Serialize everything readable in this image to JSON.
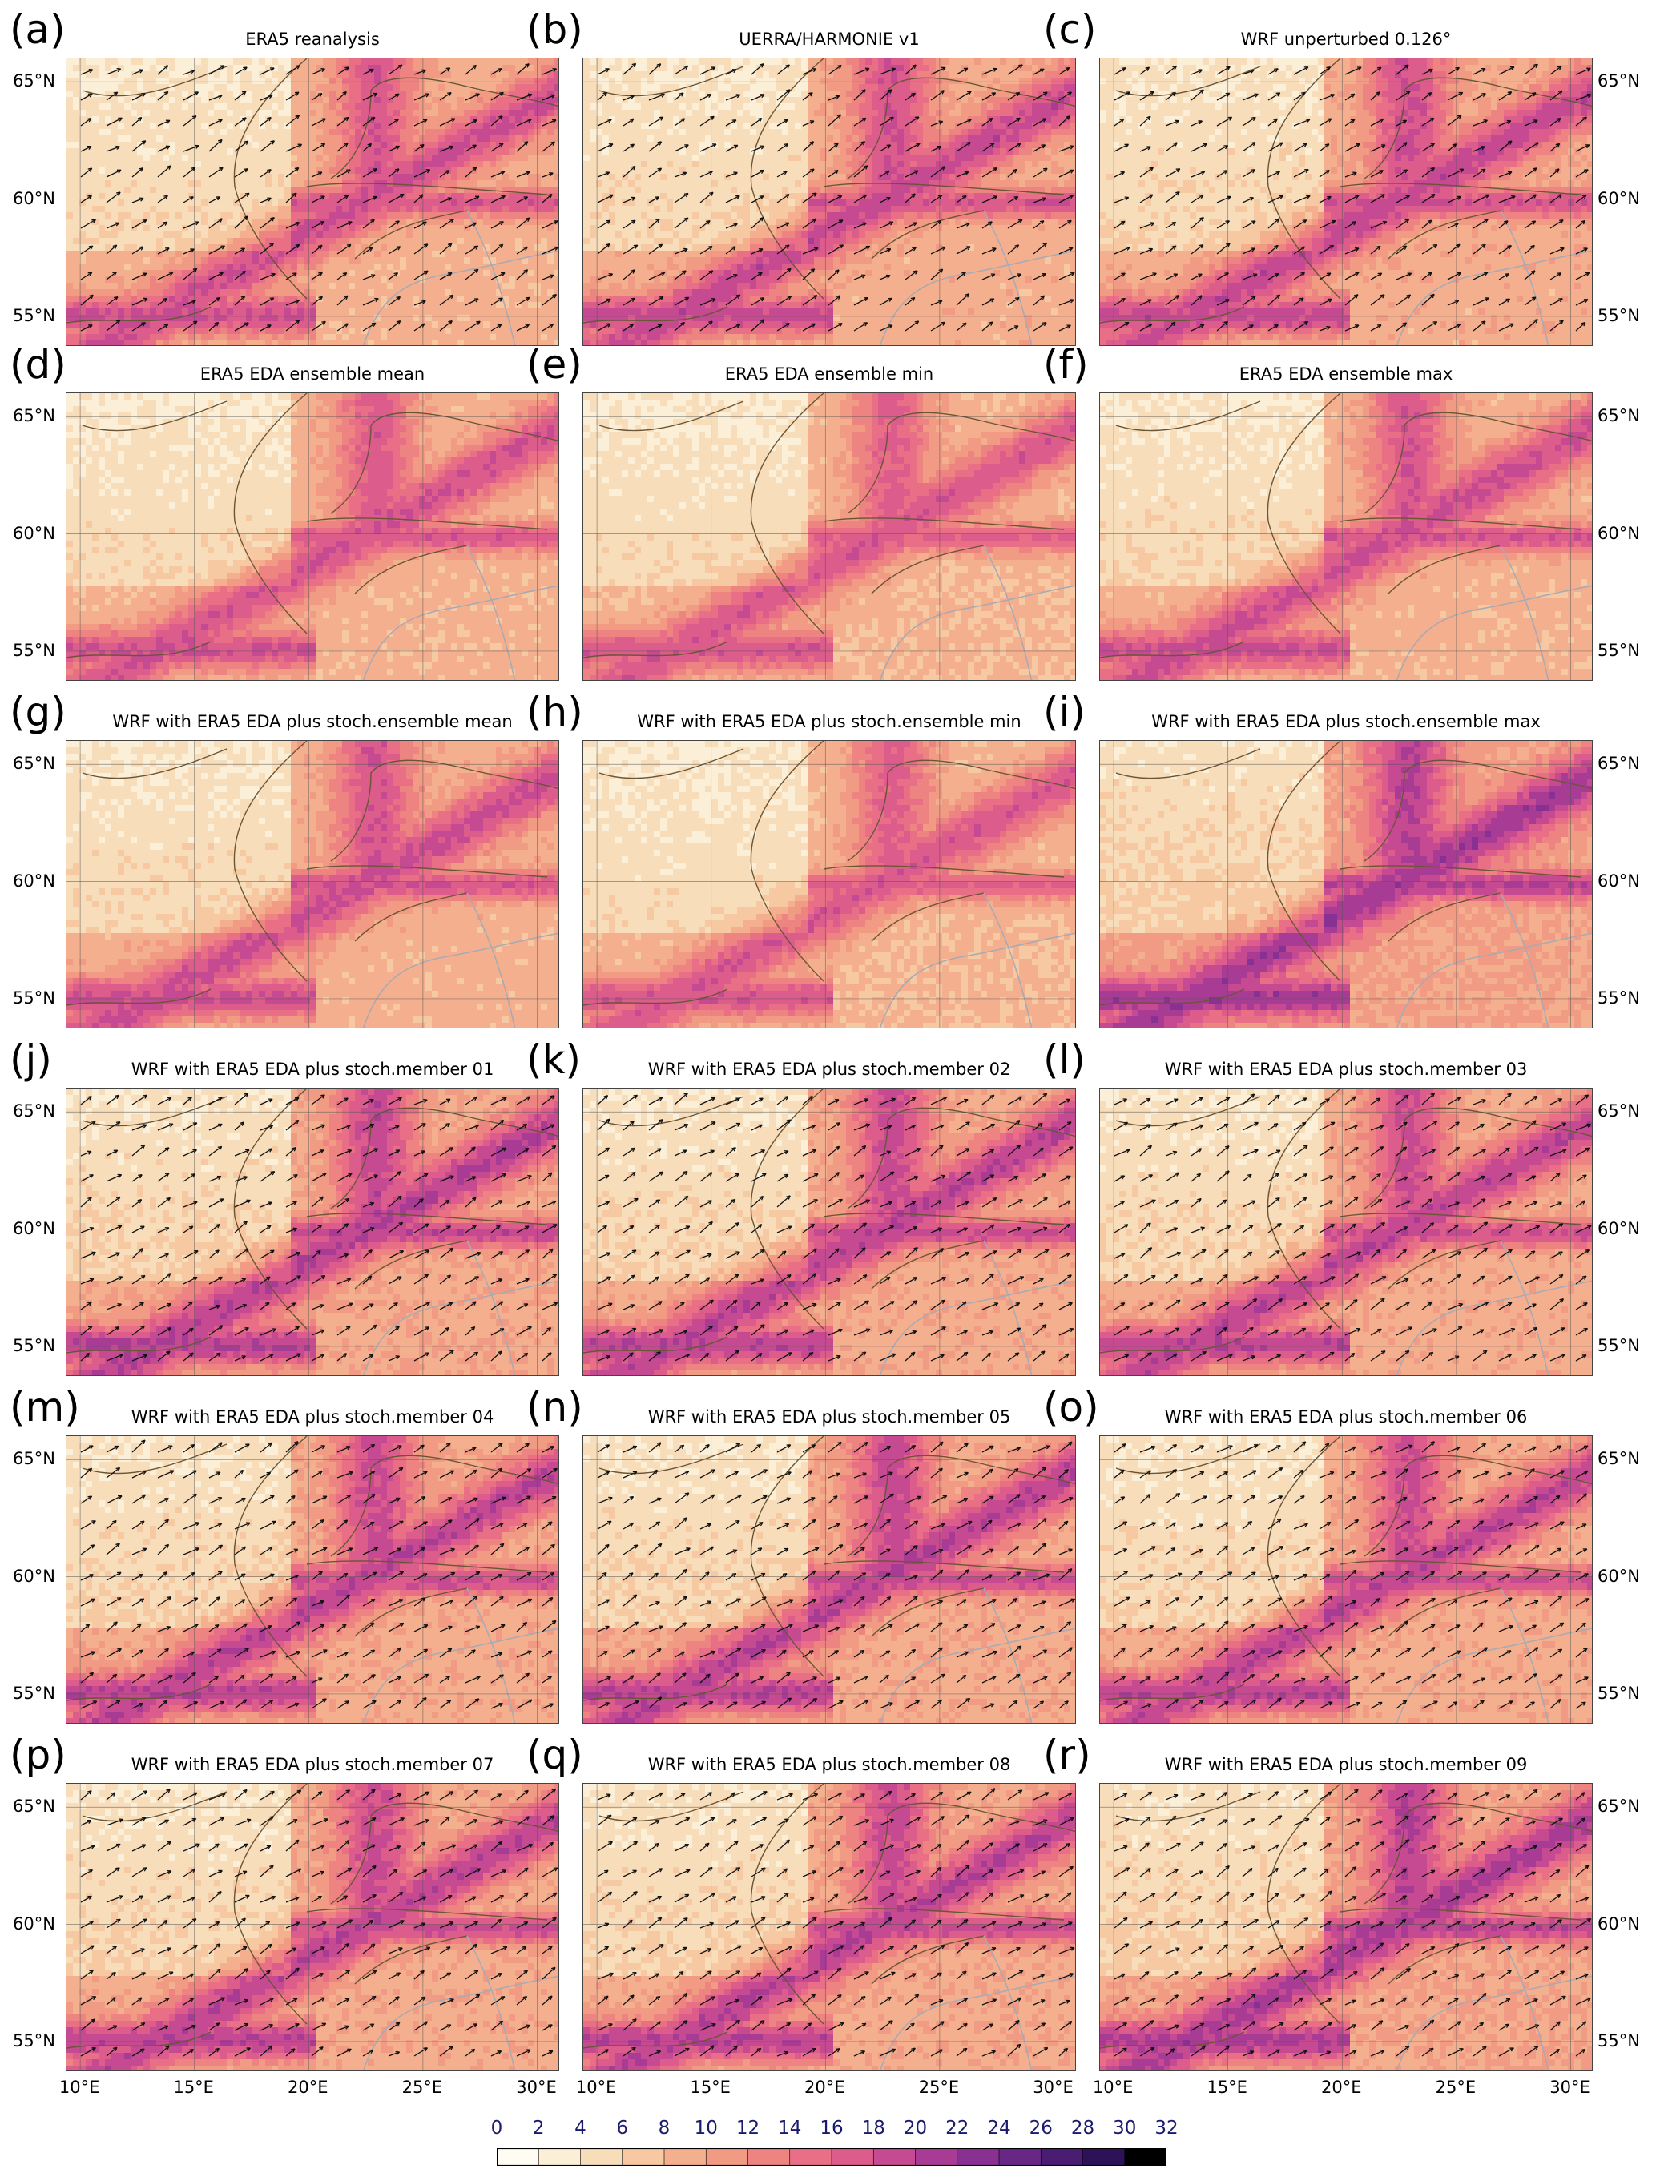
{
  "panels": [
    {
      "letter": "(a)",
      "title": "ERA5 reanalysis",
      "intensity": 0.55,
      "arrows": true
    },
    {
      "letter": "(b)",
      "title": "UERRA/HARMONIE v1",
      "intensity": 0.6,
      "arrows": true
    },
    {
      "letter": "(c)",
      "title": "WRF unperturbed 0.126°",
      "intensity": 0.62,
      "arrows": true
    },
    {
      "letter": "(d)",
      "title": "ERA5 EDA ensemble mean",
      "intensity": 0.5,
      "arrows": false
    },
    {
      "letter": "(e)",
      "title": "ERA5 EDA ensemble min",
      "intensity": 0.45,
      "arrows": false
    },
    {
      "letter": "(f)",
      "title": "ERA5 EDA ensemble max",
      "intensity": 0.55,
      "arrows": false
    },
    {
      "letter": "(g)",
      "title": "WRF with ERA5 EDA plus stoch.ensemble mean",
      "intensity": 0.58,
      "arrows": false
    },
    {
      "letter": "(h)",
      "title": "WRF with ERA5 EDA plus stoch.ensemble min",
      "intensity": 0.45,
      "arrows": false
    },
    {
      "letter": "(i)",
      "title": "WRF with ERA5 EDA plus stoch.ensemble max",
      "intensity": 0.85,
      "arrows": false
    },
    {
      "letter": "(j)",
      "title": "WRF with ERA5 EDA plus stoch.member 01",
      "intensity": 0.72,
      "arrows": true
    },
    {
      "letter": "(k)",
      "title": "WRF with ERA5 EDA plus stoch.member 02",
      "intensity": 0.68,
      "arrows": true
    },
    {
      "letter": "(l)",
      "title": "WRF with ERA5 EDA plus stoch.member 03",
      "intensity": 0.65,
      "arrows": true
    },
    {
      "letter": "(m)",
      "title": "WRF with ERA5 EDA plus stoch.member 04",
      "intensity": 0.68,
      "arrows": true
    },
    {
      "letter": "(n)",
      "title": "WRF with ERA5 EDA plus stoch.member 05",
      "intensity": 0.7,
      "arrows": true
    },
    {
      "letter": "(o)",
      "title": "WRF with ERA5 EDA plus stoch.member 06",
      "intensity": 0.66,
      "arrows": true
    },
    {
      "letter": "(p)",
      "title": "WRF with ERA5 EDA plus stoch.member 07",
      "intensity": 0.67,
      "arrows": true
    },
    {
      "letter": "(q)",
      "title": "WRF with ERA5 EDA plus stoch.member 08",
      "intensity": 0.7,
      "arrows": true
    },
    {
      "letter": "(r)",
      "title": "WRF with ERA5 EDA plus stoch.member 09",
      "intensity": 0.8,
      "arrows": true
    }
  ],
  "lat_labels": [
    "65°N",
    "60°N",
    "55°N"
  ],
  "lon_labels": [
    "10°E",
    "15°E",
    "20°E",
    "25°E",
    "30°E"
  ],
  "colorbar": {
    "ticks": [
      "0",
      "2",
      "4",
      "6",
      "8",
      "10",
      "12",
      "14",
      "16",
      "18",
      "20",
      "22",
      "24",
      "26",
      "28",
      "30",
      "32"
    ],
    "colors": [
      "#fffcf3",
      "#fbefd8",
      "#f8ddbb",
      "#f6c9a2",
      "#f4b08e",
      "#f29b84",
      "#ee8481",
      "#e86f86",
      "#dc5c8c",
      "#c54a91",
      "#a83c94",
      "#883192",
      "#682787",
      "#4a1c72",
      "#2e1257",
      "#000000"
    ]
  }
}
